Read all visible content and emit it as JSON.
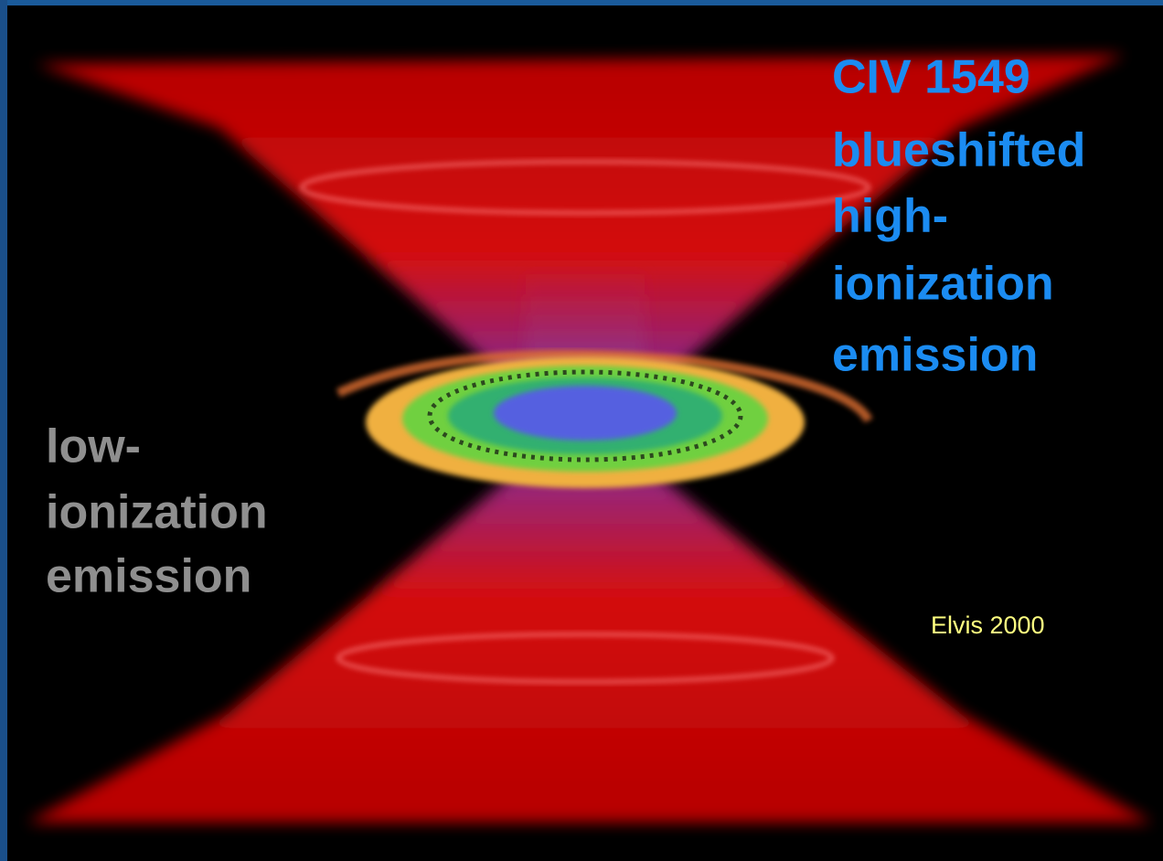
{
  "labels": {
    "high_ionization": [
      "CIV 1549",
      "blueshifted",
      "high-",
      "ionization",
      "emission"
    ],
    "low_ionization": [
      "low-",
      "ionization",
      "emission"
    ],
    "credit": "Elvis 2000"
  }
}
